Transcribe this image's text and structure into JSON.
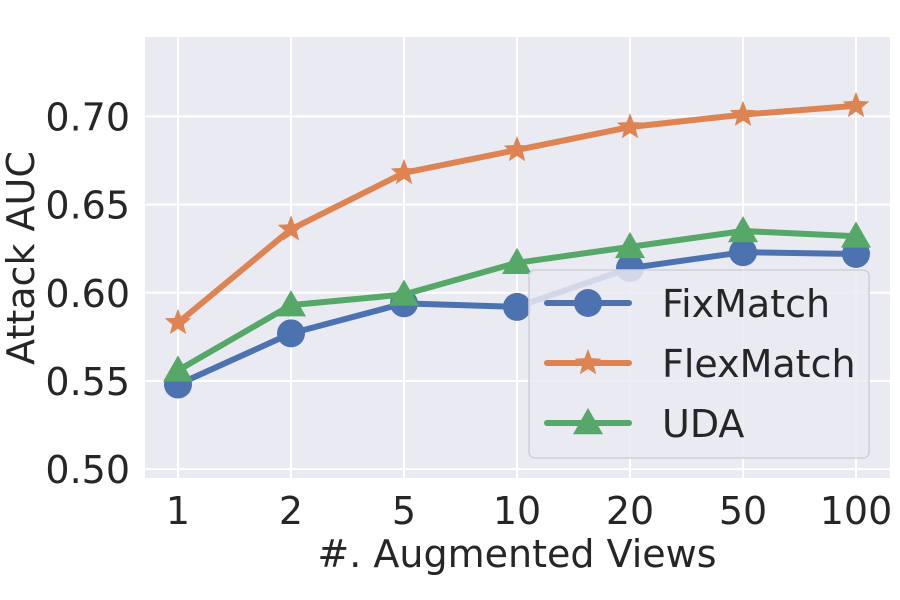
{
  "chart_data": {
    "type": "line",
    "xlabel": "#. Augmented Views",
    "ylabel": "Attack AUC",
    "categories": [
      "1",
      "2",
      "5",
      "10",
      "20",
      "50",
      "100"
    ],
    "ylim": [
      0.495,
      0.745
    ],
    "yticks": [
      "0.50",
      "0.55",
      "0.60",
      "0.65",
      "0.70"
    ],
    "ytick_values": [
      0.5,
      0.55,
      0.6,
      0.65,
      0.7
    ],
    "grid": true,
    "legend_position": "lower-right",
    "series": [
      {
        "name": "FixMatch",
        "marker": "circle",
        "color": "#4C72B0",
        "values": [
          0.548,
          0.577,
          0.594,
          0.592,
          0.614,
          0.623,
          0.622
        ]
      },
      {
        "name": "FlexMatch",
        "marker": "star",
        "color": "#DD8452",
        "values": [
          0.583,
          0.636,
          0.668,
          0.681,
          0.694,
          0.701,
          0.706
        ]
      },
      {
        "name": "UDA",
        "marker": "triangle",
        "color": "#55A868",
        "values": [
          0.556,
          0.593,
          0.599,
          0.617,
          0.626,
          0.635,
          0.632
        ]
      }
    ]
  }
}
